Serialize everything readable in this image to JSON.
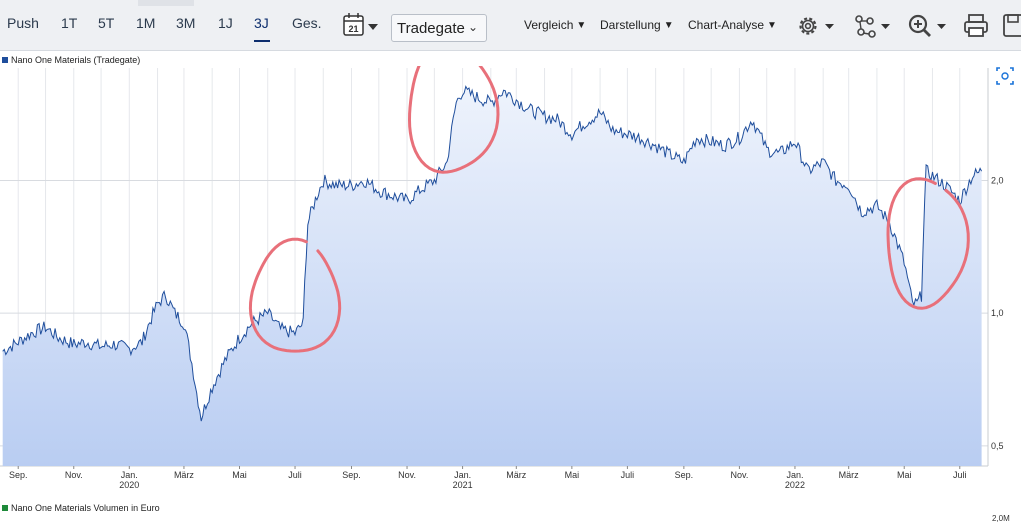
{
  "toolbar": {
    "ranges": [
      "Push",
      "1T",
      "5T",
      "1M",
      "3M",
      "1J",
      "3J",
      "Ges."
    ],
    "active_range": "3J",
    "calendar_day": "21",
    "exchange": "Tradegate",
    "menus": [
      "Vergleich",
      "Darstellung",
      "Chart-Analyse"
    ],
    "icons": [
      "gear-icon",
      "indicator-icon",
      "zoom-icon",
      "print-icon",
      "save-icon"
    ]
  },
  "legend": {
    "price": "Nano One Materials (Tradegate)",
    "volume": "Nano One Materials Volumen in Euro",
    "price_color": "#1f4e9c",
    "volume_color": "#1e8a3a"
  },
  "volume_axis_top": "2,0M",
  "chart_data": {
    "type": "area",
    "title": "",
    "series": [
      {
        "name": "Nano One Materials (Tradegate)",
        "x": [
          "2019-08-15",
          "2019-09-01",
          "2019-09-15",
          "2019-10-01",
          "2019-10-15",
          "2019-11-01",
          "2019-11-15",
          "2019-12-01",
          "2019-12-15",
          "2020-01-01",
          "2020-01-15",
          "2020-02-01",
          "2020-02-10",
          "2020-02-20",
          "2020-03-01",
          "2020-03-15",
          "2020-03-20",
          "2020-04-01",
          "2020-04-15",
          "2020-05-01",
          "2020-05-15",
          "2020-06-01",
          "2020-06-15",
          "2020-07-01",
          "2020-07-10",
          "2020-07-15",
          "2020-07-25",
          "2020-08-01",
          "2020-08-15",
          "2020-09-01",
          "2020-09-15",
          "2020-10-01",
          "2020-10-15",
          "2020-11-01",
          "2020-11-15",
          "2020-12-01",
          "2020-12-15",
          "2020-12-25",
          "2021-01-01",
          "2021-01-15",
          "2021-02-01",
          "2021-02-15",
          "2021-03-01",
          "2021-03-15",
          "2021-04-01",
          "2021-04-15",
          "2021-05-01",
          "2021-05-15",
          "2021-06-01",
          "2021-06-15",
          "2021-07-01",
          "2021-07-15",
          "2021-08-01",
          "2021-08-15",
          "2021-09-01",
          "2021-09-15",
          "2021-10-01",
          "2021-10-15",
          "2021-11-01",
          "2021-11-15",
          "2021-12-01",
          "2021-12-15",
          "2022-01-01",
          "2022-01-15",
          "2022-02-01",
          "2022-02-15",
          "2022-03-01",
          "2022-03-15",
          "2022-04-01",
          "2022-04-15",
          "2022-05-01",
          "2022-05-10",
          "2022-05-15",
          "2022-05-20",
          "2022-05-25",
          "2022-06-01",
          "2022-06-15",
          "2022-07-01",
          "2022-07-15",
          "2022-07-25"
        ],
        "values": [
          0.82,
          0.86,
          0.9,
          0.93,
          0.88,
          0.85,
          0.86,
          0.84,
          0.85,
          0.83,
          0.86,
          1.05,
          1.1,
          1.0,
          0.95,
          0.66,
          0.58,
          0.68,
          0.78,
          0.88,
          0.95,
          1.0,
          0.92,
          0.9,
          0.95,
          1.6,
          1.85,
          2.0,
          1.95,
          1.95,
          2.0,
          1.9,
          1.85,
          1.8,
          1.9,
          2.0,
          2.2,
          3.0,
          3.2,
          3.1,
          3.0,
          3.2,
          3.05,
          2.9,
          2.8,
          2.75,
          2.55,
          2.7,
          2.85,
          2.6,
          2.55,
          2.5,
          2.4,
          2.3,
          2.2,
          2.5,
          2.45,
          2.4,
          2.5,
          2.75,
          2.35,
          2.3,
          2.45,
          2.1,
          2.2,
          2.0,
          1.95,
          1.7,
          1.75,
          1.6,
          1.3,
          1.05,
          1.05,
          1.1,
          2.1,
          2.05,
          1.95,
          1.8,
          2.05,
          2.1
        ]
      }
    ],
    "x_ticks": [
      {
        "date": "2019-09-01",
        "label": "Sep.",
        "year": ""
      },
      {
        "date": "2019-11-01",
        "label": "Nov.",
        "year": ""
      },
      {
        "date": "2020-01-01",
        "label": "Jan.",
        "year": "2020"
      },
      {
        "date": "2020-03-01",
        "label": "März",
        "year": ""
      },
      {
        "date": "2020-05-01",
        "label": "Mai",
        "year": ""
      },
      {
        "date": "2020-07-01",
        "label": "Juli",
        "year": ""
      },
      {
        "date": "2020-09-01",
        "label": "Sep.",
        "year": ""
      },
      {
        "date": "2020-11-01",
        "label": "Nov.",
        "year": ""
      },
      {
        "date": "2021-01-01",
        "label": "Jan.",
        "year": "2021"
      },
      {
        "date": "2021-03-01",
        "label": "März",
        "year": ""
      },
      {
        "date": "2021-05-01",
        "label": "Mai",
        "year": ""
      },
      {
        "date": "2021-07-01",
        "label": "Juli",
        "year": ""
      },
      {
        "date": "2021-09-01",
        "label": "Sep.",
        "year": ""
      },
      {
        "date": "2021-11-01",
        "label": "Nov.",
        "year": ""
      },
      {
        "date": "2022-01-01",
        "label": "Jan.",
        "year": "2022"
      },
      {
        "date": "2022-03-01",
        "label": "März",
        "year": ""
      },
      {
        "date": "2022-05-01",
        "label": "Mai",
        "year": ""
      },
      {
        "date": "2022-07-01",
        "label": "Juli",
        "year": ""
      }
    ],
    "y_ticks": [
      {
        "value": 2.0,
        "label": "2,0"
      },
      {
        "value": 1.0,
        "label": "1,0"
      },
      {
        "value": 0.5,
        "label": "0,5"
      }
    ],
    "yscale": "log",
    "ylim": [
      0.45,
      3.6
    ],
    "grid": true,
    "legend_position": "top-left",
    "annotation_color": "#e8707a",
    "annotations": [
      {
        "type": "circle",
        "center_date": "2020-07-01",
        "center_value": 1.08
      },
      {
        "type": "circle",
        "center_date": "2020-12-20",
        "center_value": 2.9
      },
      {
        "type": "circle",
        "center_date": "2022-05-25",
        "center_value": 1.45
      }
    ]
  }
}
